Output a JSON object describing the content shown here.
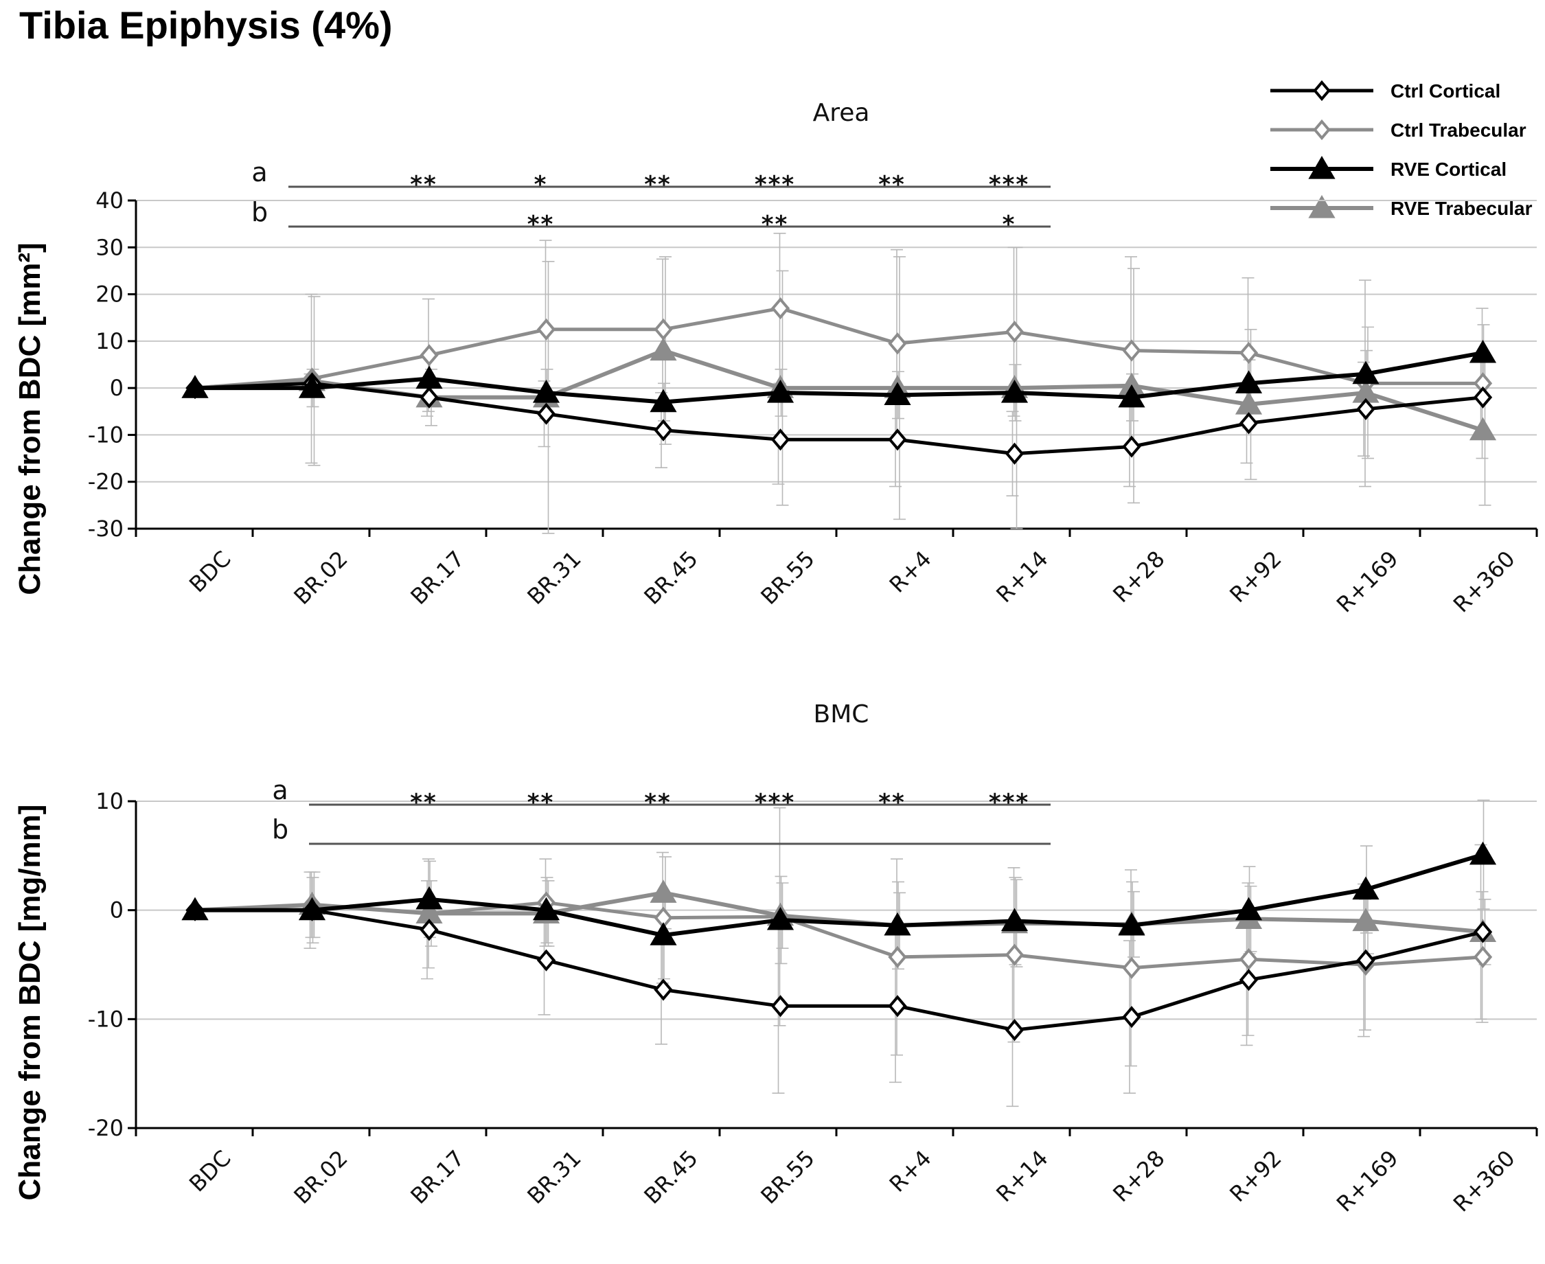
{
  "figure_title": "Tibia Epiphysis (4%)",
  "colors": {
    "cortical": "#000000",
    "trabecular": "#8c8c8c",
    "grid": "#c8c8c8",
    "errorbar": "#b8b8b8"
  },
  "legend": [
    {
      "label": "Ctrl Cortical",
      "marker": "diamond-open",
      "color": "#000000"
    },
    {
      "label": "Ctrl Trabecular",
      "marker": "diamond-open",
      "color": "#8c8c8c"
    },
    {
      "label": "RVE Cortical",
      "marker": "triangle-filled",
      "color": "#000000"
    },
    {
      "label": "RVE Trabecular",
      "marker": "triangle-filled",
      "color": "#8c8c8c"
    }
  ],
  "chart_data": [
    {
      "type": "line",
      "title": "Area",
      "ylabel": "Change from BDC [mm²]",
      "ylim": [
        -30,
        40
      ],
      "yticks": [
        -30,
        -20,
        -10,
        0,
        10,
        20,
        30,
        40
      ],
      "grid": true,
      "categories": [
        "BDC",
        "BR.02",
        "BR.17",
        "BR.31",
        "BR.45",
        "BR.55",
        "R+4",
        "R+14",
        "R+28",
        "R+92",
        "R+169",
        "R+360"
      ],
      "series": [
        {
          "name": "Ctrl Cortical",
          "values": [
            0,
            1,
            -2,
            -5.5,
            -9,
            -11,
            -11,
            -14,
            -12.5,
            -7.5,
            -4.5,
            -2
          ],
          "errors": [
            0,
            2,
            4,
            7,
            8,
            9.5,
            10,
            9,
            8.5,
            8.5,
            10,
            8
          ]
        },
        {
          "name": "Ctrl Trabecular",
          "values": [
            0,
            2,
            7,
            12.5,
            12.5,
            17,
            9.5,
            12,
            8,
            7.5,
            1,
            1
          ],
          "errors": [
            0,
            18,
            12,
            19,
            15,
            16,
            20,
            18,
            20,
            16,
            22,
            16
          ]
        },
        {
          "name": "RVE Cortical",
          "values": [
            0,
            0,
            2,
            -1,
            -3,
            -1,
            -1.5,
            -1,
            -2,
            1,
            3,
            7.5
          ],
          "errors": [
            0,
            4,
            5,
            5,
            4,
            5,
            5,
            6,
            5,
            5,
            5,
            6
          ]
        },
        {
          "name": "RVE Trabecular",
          "values": [
            0,
            1.5,
            -2,
            -2,
            8,
            0,
            0,
            0,
            0.5,
            -3.5,
            -1,
            -9
          ],
          "errors": [
            0,
            18,
            6,
            29,
            20,
            25,
            28,
            30,
            25,
            16,
            14,
            16
          ]
        }
      ],
      "significance": [
        {
          "label": "a",
          "from": "BR.02",
          "to": "R+14",
          "stars": [
            "**",
            "*",
            "**",
            "***",
            "**",
            "***"
          ],
          "star_positions": [
            "BR.17",
            "BR.31",
            "BR.45",
            "BR.55",
            "R+4",
            "R+14"
          ]
        },
        {
          "label": "b",
          "from": "BR.02",
          "to": "R+14",
          "stars": [
            "**",
            "**",
            "*"
          ],
          "star_positions": [
            "BR.31",
            "BR.55",
            "R+14"
          ]
        }
      ]
    },
    {
      "type": "line",
      "title": "BMC",
      "ylabel": "Change from BDC [mg/mm]",
      "ylim": [
        -20,
        10
      ],
      "yticks": [
        -20,
        -10,
        0,
        10
      ],
      "grid": true,
      "categories": [
        "BDC",
        "BR.02",
        "BR.17",
        "BR.31",
        "BR.45",
        "BR.55",
        "R+4",
        "R+14",
        "R+28",
        "R+92",
        "R+169",
        "R+360"
      ],
      "series": [
        {
          "name": "Ctrl Cortical",
          "values": [
            0,
            0,
            -1.8,
            -4.6,
            -7.3,
            -8.8,
            -8.8,
            -11,
            -9.8,
            -6.4,
            -4.6,
            -2
          ],
          "errors": [
            0,
            3.5,
            4.5,
            5,
            5,
            8,
            7,
            7,
            7,
            6,
            7,
            8
          ]
        },
        {
          "name": "Ctrl Trabecular",
          "values": [
            0,
            0.5,
            -0.3,
            0.7,
            -0.7,
            -0.6,
            -4.3,
            -4.1,
            -5.3,
            -4.5,
            -5,
            -4.3
          ],
          "errors": [
            0,
            3,
            5,
            4,
            6,
            10,
            9,
            8,
            9,
            7,
            6,
            6
          ]
        },
        {
          "name": "RVE Cortical",
          "values": [
            0,
            0,
            1,
            0,
            -2.3,
            -0.9,
            -1.4,
            -1,
            -1.4,
            0,
            1.9,
            5.1
          ],
          "errors": [
            0,
            3,
            3.5,
            3,
            4,
            4,
            4,
            4,
            4,
            4,
            4,
            5
          ]
        },
        {
          "name": "RVE Trabecular",
          "values": [
            0,
            0.5,
            -0.3,
            -0.3,
            1.6,
            -0.5,
            -1.4,
            -1.2,
            -1.3,
            -0.8,
            -1,
            -2
          ],
          "errors": [
            0,
            3,
            3,
            3,
            3.3,
            3,
            3,
            4,
            3,
            3,
            3,
            3
          ]
        }
      ],
      "significance": [
        {
          "label": "a",
          "from": "BR.02",
          "to": "R+14",
          "stars": [
            "**",
            "**",
            "**",
            "***",
            "**",
            "***"
          ],
          "star_positions": [
            "BR.17",
            "BR.31",
            "BR.45",
            "BR.55",
            "R+4",
            "R+14"
          ]
        },
        {
          "label": "b",
          "from": "BR.02",
          "to": "R+14",
          "stars": [],
          "star_positions": []
        }
      ]
    }
  ]
}
